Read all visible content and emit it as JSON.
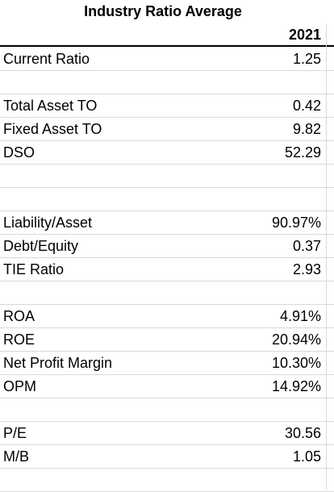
{
  "sheet": {
    "title": "Industry Ratio Average",
    "year_header": "2021",
    "rows": [
      {
        "label": "Current Ratio",
        "value": "1.25"
      },
      {
        "label": "",
        "value": ""
      },
      {
        "label": "Total Asset TO",
        "value": "0.42"
      },
      {
        "label": "Fixed Asset TO",
        "value": "9.82"
      },
      {
        "label": "DSO",
        "value": "52.29"
      },
      {
        "label": "",
        "value": ""
      },
      {
        "label": "",
        "value": ""
      },
      {
        "label": "Liability/Asset",
        "value": "90.97%"
      },
      {
        "label": "Debt/Equity",
        "value": "0.37"
      },
      {
        "label": "TIE Ratio",
        "value": "2.93"
      },
      {
        "label": "",
        "value": ""
      },
      {
        "label": "ROA",
        "value": "4.91%"
      },
      {
        "label": "ROE",
        "value": "20.94%"
      },
      {
        "label": "Net Profit Margin",
        "value": "10.30%"
      },
      {
        "label": "OPM",
        "value": "14.92%"
      },
      {
        "label": "",
        "value": ""
      },
      {
        "label": "P/E",
        "value": "30.56"
      },
      {
        "label": "M/B",
        "value": "1.05"
      },
      {
        "label": "",
        "value": ""
      }
    ]
  }
}
